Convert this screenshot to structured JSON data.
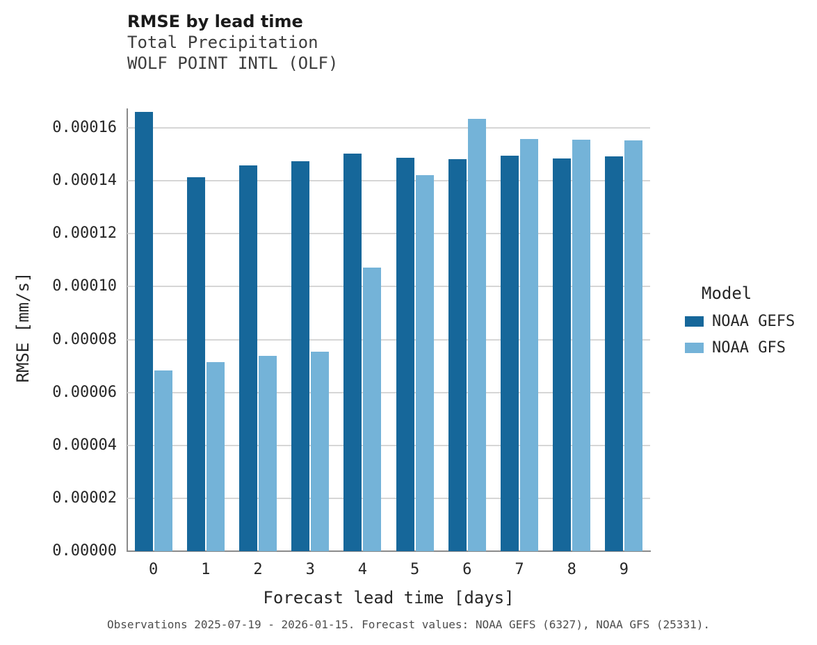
{
  "title": "RMSE by lead time",
  "subtitle_line1": "Total Precipitation",
  "subtitle_line2": "WOLF POINT INTL (OLF)",
  "caption": "Observations 2025-07-19 - 2026-01-15. Forecast values: NOAA GEFS (6327), NOAA GFS (25331).",
  "chart_data": {
    "type": "bar",
    "title": "RMSE by lead time",
    "subtitle": "Total Precipitation / WOLF POINT INTL (OLF)",
    "xlabel": "Forecast lead time [days]",
    "ylabel": "RMSE [mm/s]",
    "categories": [
      "0",
      "1",
      "2",
      "3",
      "4",
      "5",
      "6",
      "7",
      "8",
      "9"
    ],
    "series": [
      {
        "name": "NOAA GEFS",
        "color": "#16679a",
        "values": [
          0.000166,
          0.0001413,
          0.0001457,
          0.0001475,
          0.0001503,
          0.0001487,
          0.0001483,
          0.0001494,
          0.0001484,
          0.0001491
        ]
      },
      {
        "name": "NOAA GFS",
        "color": "#74b3d8",
        "values": [
          6.83e-05,
          7.15e-05,
          7.37e-05,
          7.53e-05,
          0.0001071,
          0.0001422,
          0.0001634,
          0.0001558,
          0.0001555,
          0.0001552
        ]
      }
    ],
    "yticks": [
      0.0,
      2e-05,
      4e-05,
      6e-05,
      8e-05,
      0.0001,
      0.00012,
      0.00014,
      0.00016
    ],
    "ytick_labels": [
      "0.00000",
      "0.00002",
      "0.00004",
      "0.00006",
      "0.00008",
      "0.00010",
      "0.00012",
      "0.00014",
      "0.00016"
    ],
    "ylim": [
      0,
      0.00017
    ],
    "grid": "horizontal",
    "legend_title": "Model",
    "legend_position": "right"
  }
}
